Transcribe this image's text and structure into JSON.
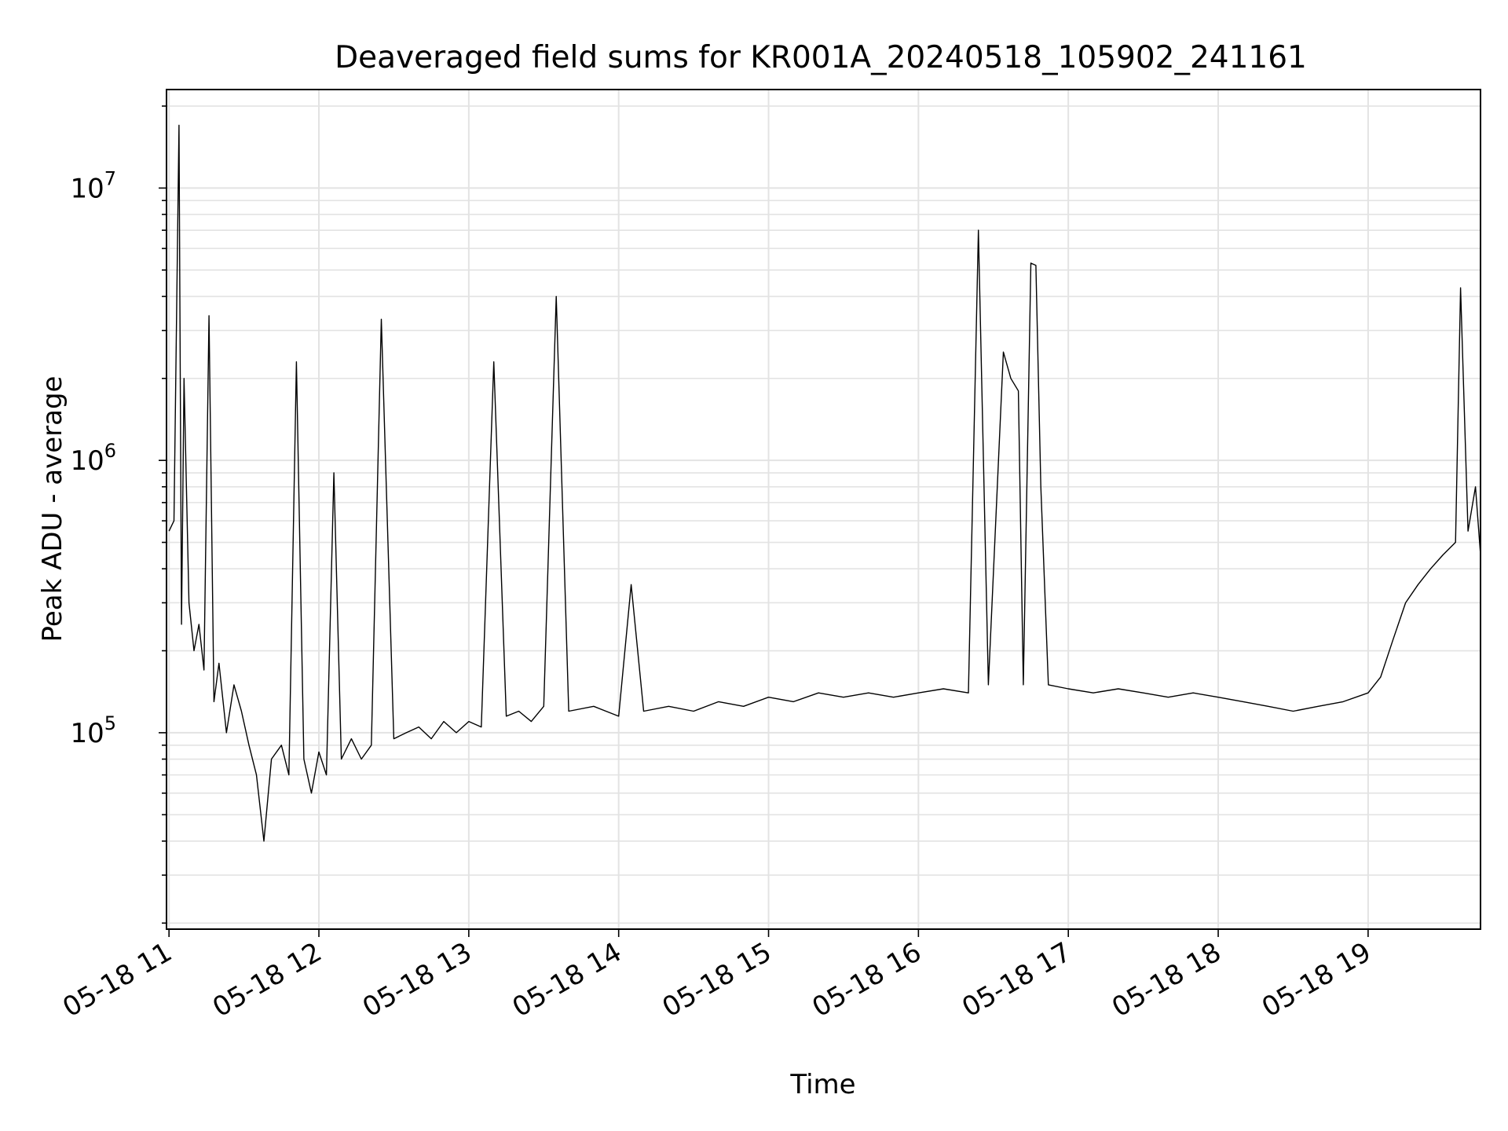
{
  "chart_data": {
    "type": "line",
    "title": "Deaveraged field sums for KR001A_20240518_105902_241161",
    "xlabel": "Time",
    "ylabel": "Peak ADU - average",
    "yscale": "log",
    "ylim": [
      19000,
      23000000
    ],
    "xlim": [
      "2024-05-18 10:59",
      "2024-05-18 19:45"
    ],
    "x_ticks": [
      "05-18 11",
      "05-18 12",
      "05-18 13",
      "05-18 14",
      "05-18 15",
      "05-18 16",
      "05-18 17",
      "05-18 18",
      "05-18 19"
    ],
    "y_ticks": [
      {
        "base": "10",
        "exp": "5",
        "value": 100000
      },
      {
        "base": "10",
        "exp": "6",
        "value": 1000000
      },
      {
        "base": "10",
        "exp": "7",
        "value": 10000000
      }
    ],
    "grid": true,
    "line_color": "#000000",
    "series": [
      {
        "values": [
          [
            "2024-05-18 11:00",
            550000
          ],
          [
            "2024-05-18 11:02",
            600000
          ],
          [
            "2024-05-18 11:04",
            17000000
          ],
          [
            "2024-05-18 11:05",
            250000
          ],
          [
            "2024-05-18 11:06",
            2000000
          ],
          [
            "2024-05-18 11:08",
            300000
          ],
          [
            "2024-05-18 11:10",
            200000
          ],
          [
            "2024-05-18 11:12",
            250000
          ],
          [
            "2024-05-18 11:14",
            170000
          ],
          [
            "2024-05-18 11:16",
            3400000
          ],
          [
            "2024-05-18 11:18",
            130000
          ],
          [
            "2024-05-18 11:20",
            180000
          ],
          [
            "2024-05-18 11:23",
            100000
          ],
          [
            "2024-05-18 11:26",
            150000
          ],
          [
            "2024-05-18 11:29",
            120000
          ],
          [
            "2024-05-18 11:32",
            90000
          ],
          [
            "2024-05-18 11:35",
            70000
          ],
          [
            "2024-05-18 11:38",
            40000
          ],
          [
            "2024-05-18 11:41",
            80000
          ],
          [
            "2024-05-18 11:45",
            90000
          ],
          [
            "2024-05-18 11:48",
            70000
          ],
          [
            "2024-05-18 11:51",
            2300000
          ],
          [
            "2024-05-18 11:54",
            80000
          ],
          [
            "2024-05-18 11:57",
            60000
          ],
          [
            "2024-05-18 12:00",
            85000
          ],
          [
            "2024-05-18 12:03",
            70000
          ],
          [
            "2024-05-18 12:06",
            900000
          ],
          [
            "2024-05-18 12:09",
            80000
          ],
          [
            "2024-05-18 12:13",
            95000
          ],
          [
            "2024-05-18 12:17",
            80000
          ],
          [
            "2024-05-18 12:21",
            90000
          ],
          [
            "2024-05-18 12:25",
            3300000
          ],
          [
            "2024-05-18 12:30",
            95000
          ],
          [
            "2024-05-18 12:35",
            100000
          ],
          [
            "2024-05-18 12:40",
            105000
          ],
          [
            "2024-05-18 12:45",
            95000
          ],
          [
            "2024-05-18 12:50",
            110000
          ],
          [
            "2024-05-18 12:55",
            100000
          ],
          [
            "2024-05-18 13:00",
            110000
          ],
          [
            "2024-05-18 13:05",
            105000
          ],
          [
            "2024-05-18 13:10",
            2300000
          ],
          [
            "2024-05-18 13:15",
            115000
          ],
          [
            "2024-05-18 13:20",
            120000
          ],
          [
            "2024-05-18 13:25",
            110000
          ],
          [
            "2024-05-18 13:30",
            125000
          ],
          [
            "2024-05-18 13:33",
            1000000
          ],
          [
            "2024-05-18 13:35",
            4000000
          ],
          [
            "2024-05-18 13:40",
            120000
          ],
          [
            "2024-05-18 13:50",
            125000
          ],
          [
            "2024-05-18 14:00",
            115000
          ],
          [
            "2024-05-18 14:05",
            350000
          ],
          [
            "2024-05-18 14:10",
            120000
          ],
          [
            "2024-05-18 14:20",
            125000
          ],
          [
            "2024-05-18 14:30",
            120000
          ],
          [
            "2024-05-18 14:40",
            130000
          ],
          [
            "2024-05-18 14:50",
            125000
          ],
          [
            "2024-05-18 15:00",
            135000
          ],
          [
            "2024-05-18 15:10",
            130000
          ],
          [
            "2024-05-18 15:20",
            140000
          ],
          [
            "2024-05-18 15:30",
            135000
          ],
          [
            "2024-05-18 15:40",
            140000
          ],
          [
            "2024-05-18 15:50",
            135000
          ],
          [
            "2024-05-18 16:00",
            140000
          ],
          [
            "2024-05-18 16:10",
            145000
          ],
          [
            "2024-05-18 16:20",
            140000
          ],
          [
            "2024-05-18 16:24",
            7000000
          ],
          [
            "2024-05-18 16:28",
            150000
          ],
          [
            "2024-05-18 16:34",
            2500000
          ],
          [
            "2024-05-18 16:37",
            2000000
          ],
          [
            "2024-05-18 16:40",
            1800000
          ],
          [
            "2024-05-18 16:42",
            150000
          ],
          [
            "2024-05-18 16:45",
            5300000
          ],
          [
            "2024-05-18 16:47",
            5200000
          ],
          [
            "2024-05-18 16:49",
            800000
          ],
          [
            "2024-05-18 16:52",
            150000
          ],
          [
            "2024-05-18 17:00",
            145000
          ],
          [
            "2024-05-18 17:10",
            140000
          ],
          [
            "2024-05-18 17:20",
            145000
          ],
          [
            "2024-05-18 17:30",
            140000
          ],
          [
            "2024-05-18 17:40",
            135000
          ],
          [
            "2024-05-18 17:50",
            140000
          ],
          [
            "2024-05-18 18:00",
            135000
          ],
          [
            "2024-05-18 18:10",
            130000
          ],
          [
            "2024-05-18 18:20",
            125000
          ],
          [
            "2024-05-18 18:30",
            120000
          ],
          [
            "2024-05-18 18:40",
            125000
          ],
          [
            "2024-05-18 18:50",
            130000
          ],
          [
            "2024-05-18 19:00",
            140000
          ],
          [
            "2024-05-18 19:05",
            160000
          ],
          [
            "2024-05-18 19:10",
            220000
          ],
          [
            "2024-05-18 19:15",
            300000
          ],
          [
            "2024-05-18 19:20",
            350000
          ],
          [
            "2024-05-18 19:25",
            400000
          ],
          [
            "2024-05-18 19:30",
            450000
          ],
          [
            "2024-05-18 19:35",
            500000
          ],
          [
            "2024-05-18 19:37",
            4300000
          ],
          [
            "2024-05-18 19:40",
            550000
          ],
          [
            "2024-05-18 19:43",
            800000
          ],
          [
            "2024-05-18 19:45",
            450000
          ]
        ]
      }
    ]
  }
}
